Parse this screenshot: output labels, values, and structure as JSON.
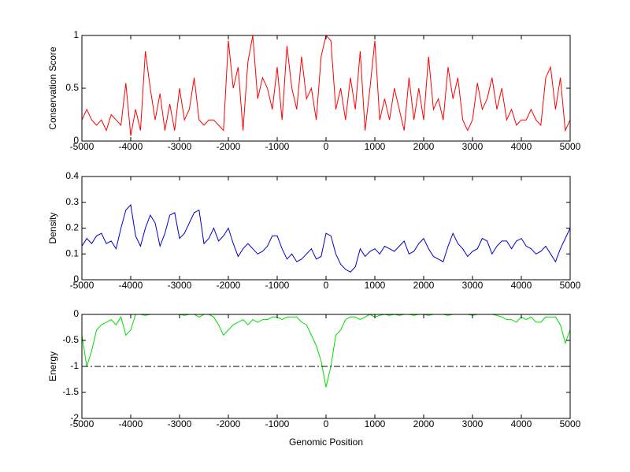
{
  "chart_data": [
    {
      "type": "line",
      "ylabel": "Conservation Score",
      "color": "#ff0000",
      "xlim": [
        -5000,
        5000
      ],
      "xticks": [
        -5000,
        -4000,
        -3000,
        -2000,
        -1000,
        0,
        1000,
        2000,
        3000,
        4000,
        5000
      ],
      "ylim": [
        0,
        1
      ],
      "yticks": [
        0,
        0.5,
        1
      ],
      "grid": false,
      "x": [
        -5000,
        -4900,
        -4800,
        -4700,
        -4600,
        -4500,
        -4400,
        -4300,
        -4200,
        -4100,
        -4000,
        -3900,
        -3800,
        -3700,
        -3600,
        -3500,
        -3400,
        -3300,
        -3200,
        -3100,
        -3000,
        -2900,
        -2800,
        -2700,
        -2600,
        -2500,
        -2400,
        -2300,
        -2200,
        -2100,
        -2000,
        -1900,
        -1800,
        -1700,
        -1600,
        -1500,
        -1400,
        -1300,
        -1200,
        -1100,
        -1000,
        -900,
        -800,
        -700,
        -600,
        -500,
        -400,
        -300,
        -200,
        -100,
        0,
        100,
        200,
        300,
        400,
        500,
        600,
        700,
        800,
        900,
        1000,
        1100,
        1200,
        1300,
        1400,
        1500,
        1600,
        1700,
        1800,
        1900,
        2000,
        2100,
        2200,
        2300,
        2400,
        2500,
        2600,
        2700,
        2800,
        2900,
        3000,
        3100,
        3200,
        3300,
        3400,
        3500,
        3600,
        3700,
        3800,
        3900,
        4000,
        4100,
        4200,
        4300,
        4400,
        4500,
        4600,
        4700,
        4800,
        4900,
        5000
      ],
      "values": [
        0.2,
        0.3,
        0.2,
        0.15,
        0.2,
        0.1,
        0.25,
        0.2,
        0.15,
        0.55,
        0.05,
        0.3,
        0.1,
        0.85,
        0.5,
        0.2,
        0.45,
        0.1,
        0.35,
        0.1,
        0.5,
        0.2,
        0.3,
        0.6,
        0.2,
        0.15,
        0.2,
        0.2,
        0.15,
        0.1,
        0.95,
        0.5,
        0.7,
        0.1,
        0.75,
        1,
        0.4,
        0.6,
        0.5,
        0.3,
        0.7,
        0.2,
        0.9,
        0.5,
        0.3,
        0.8,
        0.4,
        0.5,
        0.2,
        0.8,
        1,
        0.95,
        0.3,
        0.5,
        0.2,
        0.6,
        0.3,
        0.85,
        0.1,
        0.5,
        0.95,
        0.2,
        0.4,
        0.2,
        0.5,
        0.3,
        0.1,
        0.6,
        0.2,
        0.5,
        0.2,
        0.8,
        0.3,
        0.4,
        0.2,
        0.7,
        0.4,
        0.6,
        0.2,
        0.1,
        0.2,
        0.55,
        0.3,
        0.4,
        0.6,
        0.3,
        0.5,
        0.2,
        0.3,
        0.15,
        0.2,
        0.2,
        0.3,
        0.2,
        0.15,
        0.6,
        0.7,
        0.3,
        0.6,
        0.1,
        0.2
      ]
    },
    {
      "type": "line",
      "ylabel": "Density",
      "color": "#0000cc",
      "xlim": [
        -5000,
        5000
      ],
      "xticks": [
        -5000,
        -4000,
        -3000,
        -2000,
        -1000,
        0,
        1000,
        2000,
        3000,
        4000,
        5000
      ],
      "ylim": [
        0,
        0.4
      ],
      "yticks": [
        0,
        0.1,
        0.2,
        0.3,
        0.4
      ],
      "grid": false,
      "x": [
        -5000,
        -4900,
        -4800,
        -4700,
        -4600,
        -4500,
        -4400,
        -4300,
        -4200,
        -4100,
        -4000,
        -3900,
        -3800,
        -3700,
        -3600,
        -3500,
        -3400,
        -3300,
        -3200,
        -3100,
        -3000,
        -2900,
        -2800,
        -2700,
        -2600,
        -2500,
        -2400,
        -2300,
        -2200,
        -2100,
        -2000,
        -1900,
        -1800,
        -1700,
        -1600,
        -1500,
        -1400,
        -1300,
        -1200,
        -1100,
        -1000,
        -900,
        -800,
        -700,
        -600,
        -500,
        -400,
        -300,
        -200,
        -100,
        0,
        100,
        200,
        300,
        400,
        500,
        600,
        700,
        800,
        900,
        1000,
        1100,
        1200,
        1300,
        1400,
        1500,
        1600,
        1700,
        1800,
        1900,
        2000,
        2100,
        2200,
        2300,
        2400,
        2500,
        2600,
        2700,
        2800,
        2900,
        3000,
        3100,
        3200,
        3300,
        3400,
        3500,
        3600,
        3700,
        3800,
        3900,
        4000,
        4100,
        4200,
        4300,
        4400,
        4500,
        4600,
        4700,
        4800,
        4900,
        5000
      ],
      "values": [
        0.13,
        0.16,
        0.14,
        0.17,
        0.18,
        0.14,
        0.15,
        0.12,
        0.2,
        0.27,
        0.29,
        0.17,
        0.13,
        0.2,
        0.25,
        0.22,
        0.13,
        0.18,
        0.25,
        0.26,
        0.16,
        0.18,
        0.22,
        0.26,
        0.27,
        0.14,
        0.16,
        0.2,
        0.15,
        0.17,
        0.2,
        0.14,
        0.09,
        0.12,
        0.14,
        0.12,
        0.1,
        0.11,
        0.13,
        0.17,
        0.17,
        0.12,
        0.08,
        0.1,
        0.07,
        0.08,
        0.1,
        0.12,
        0.08,
        0.09,
        0.18,
        0.17,
        0.1,
        0.06,
        0.04,
        0.03,
        0.05,
        0.12,
        0.09,
        0.11,
        0.12,
        0.1,
        0.13,
        0.12,
        0.11,
        0.13,
        0.15,
        0.1,
        0.11,
        0.14,
        0.16,
        0.12,
        0.09,
        0.08,
        0.07,
        0.13,
        0.18,
        0.14,
        0.12,
        0.09,
        0.11,
        0.12,
        0.16,
        0.15,
        0.1,
        0.13,
        0.15,
        0.15,
        0.12,
        0.15,
        0.16,
        0.13,
        0.12,
        0.1,
        0.11,
        0.13,
        0.1,
        0.07,
        0.12,
        0.16,
        0.2
      ]
    },
    {
      "type": "line",
      "ylabel": "Energy",
      "xlabel": "Genomic Position",
      "color": "#00dd00",
      "xlim": [
        -5000,
        5000
      ],
      "xticks": [
        -5000,
        -4000,
        -3000,
        -2000,
        -1000,
        0,
        1000,
        2000,
        3000,
        4000,
        5000
      ],
      "ylim": [
        -2,
        0
      ],
      "yticks": [
        -2,
        -1.5,
        -1,
        -0.5,
        0
      ],
      "grid": false,
      "hline": -1,
      "hline_color": "#000000",
      "x": [
        -5000,
        -4900,
        -4800,
        -4700,
        -4600,
        -4500,
        -4400,
        -4300,
        -4200,
        -4100,
        -4000,
        -3900,
        -3800,
        -3700,
        -3600,
        -3500,
        -3400,
        -3300,
        -3200,
        -3100,
        -3000,
        -2900,
        -2800,
        -2700,
        -2600,
        -2500,
        -2400,
        -2300,
        -2200,
        -2100,
        -2000,
        -1900,
        -1800,
        -1700,
        -1600,
        -1500,
        -1400,
        -1300,
        -1200,
        -1100,
        -1000,
        -900,
        -800,
        -700,
        -600,
        -500,
        -400,
        -300,
        -200,
        -100,
        0,
        100,
        200,
        300,
        400,
        500,
        600,
        700,
        800,
        900,
        1000,
        1100,
        1200,
        1300,
        1400,
        1500,
        1600,
        1700,
        1800,
        1900,
        2000,
        2100,
        2200,
        2300,
        2400,
        2500,
        2600,
        2700,
        2800,
        2900,
        3000,
        3100,
        3200,
        3300,
        3400,
        3500,
        3600,
        3700,
        3800,
        3900,
        4000,
        4100,
        4200,
        4300,
        4400,
        4500,
        4600,
        4700,
        4800,
        4900,
        5000
      ],
      "values": [
        -0.4,
        -1,
        -0.7,
        -0.3,
        -0.2,
        -0.15,
        -0.1,
        -0.2,
        -0.05,
        -0.4,
        -0.3,
        0,
        0,
        -0.02,
        0,
        0,
        0,
        0,
        0,
        0,
        0,
        -0.02,
        0,
        0,
        -0.05,
        0,
        0,
        -0.05,
        -0.2,
        -0.4,
        -0.3,
        -0.2,
        -0.15,
        -0.1,
        -0.2,
        -0.1,
        -0.15,
        -0.1,
        -0.1,
        -0.05,
        -0.05,
        -0.1,
        -0.05,
        -0.05,
        -0.05,
        -0.15,
        -0.2,
        -0.4,
        -0.6,
        -0.9,
        -1.4,
        -1,
        -0.4,
        -0.3,
        -0.1,
        -0.05,
        -0.05,
        -0.1,
        -0.05,
        0,
        -0.05,
        -0.02,
        0,
        -0.02,
        0,
        -0.02,
        0,
        0,
        -0.02,
        0,
        0,
        -0.02,
        0,
        0,
        0,
        -0.02,
        0,
        0,
        0,
        0,
        -0.02,
        0,
        0,
        0,
        0,
        -0.02,
        -0.05,
        -0.1,
        -0.1,
        -0.15,
        -0.05,
        -0.1,
        -0.05,
        -0.15,
        -0.15,
        -0.05,
        -0.05,
        -0.05,
        -0.2,
        -0.55,
        -0.3
      ]
    }
  ]
}
